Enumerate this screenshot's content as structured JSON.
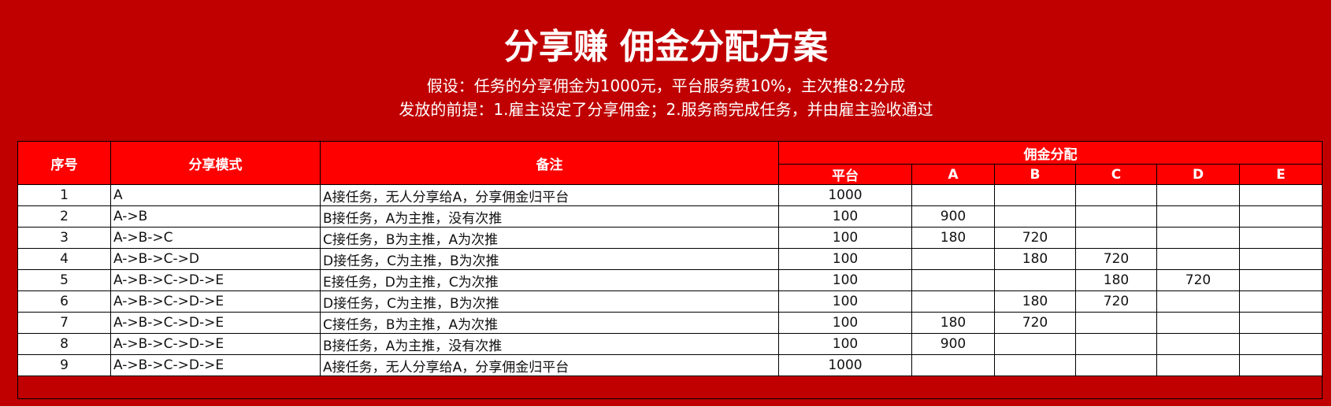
{
  "title": "分享赚 佣金分配方案",
  "subtitle_1": "假设：任务的分享佣金为1000元，平台服务费10%，主次推8:2分成",
  "subtitle_2": "发放的前提：1.雇主设定了分享佣金；2.服务商完成任务，并由雇主验收通过",
  "colors": {
    "background": "#C00000",
    "header": "#FF0000"
  },
  "table": {
    "headers": {
      "no": "序号",
      "mode": "分享模式",
      "note": "备注",
      "group": "佣金分配",
      "platform": "平台",
      "a": "A",
      "b": "B",
      "c": "C",
      "d": "D",
      "e": "E"
    },
    "rows": [
      {
        "no": "1",
        "mode": "A",
        "note": "A接任务，无人分享给A，分享佣金归平台",
        "platform": "1000",
        "a": "",
        "b": "",
        "c": "",
        "d": "",
        "e": ""
      },
      {
        "no": "2",
        "mode": "A->B",
        "note": "B接任务，A为主推，没有次推",
        "platform": "100",
        "a": "900",
        "b": "",
        "c": "",
        "d": "",
        "e": ""
      },
      {
        "no": "3",
        "mode": "A->B->C",
        "note": "C接任务，B为主推，A为次推",
        "platform": "100",
        "a": "180",
        "b": "720",
        "c": "",
        "d": "",
        "e": ""
      },
      {
        "no": "4",
        "mode": "A->B->C->D",
        "note": "D接任务，C为主推，B为次推",
        "platform": "100",
        "a": "",
        "b": "180",
        "c": "720",
        "d": "",
        "e": ""
      },
      {
        "no": "5",
        "mode": "A->B->C->D->E",
        "note": "E接任务，D为主推，C为次推",
        "platform": "100",
        "a": "",
        "b": "",
        "c": "180",
        "d": "720",
        "e": ""
      },
      {
        "no": "6",
        "mode": "A->B->C->D->E",
        "note": "D接任务，C为主推，B为次推",
        "platform": "100",
        "a": "",
        "b": "180",
        "c": "720",
        "d": "",
        "e": ""
      },
      {
        "no": "7",
        "mode": "A->B->C->D->E",
        "note": "C接任务，B为主推，A为次推",
        "platform": "100",
        "a": "180",
        "b": "720",
        "c": "",
        "d": "",
        "e": ""
      },
      {
        "no": "8",
        "mode": "A->B->C->D->E",
        "note": "B接任务，A为主推，没有次推",
        "platform": "100",
        "a": "900",
        "b": "",
        "c": "",
        "d": "",
        "e": ""
      },
      {
        "no": "9",
        "mode": "A->B->C->D->E",
        "note": "A接任务，无人分享给A，分享佣金归平台",
        "platform": "1000",
        "a": "",
        "b": "",
        "c": "",
        "d": "",
        "e": ""
      }
    ]
  }
}
